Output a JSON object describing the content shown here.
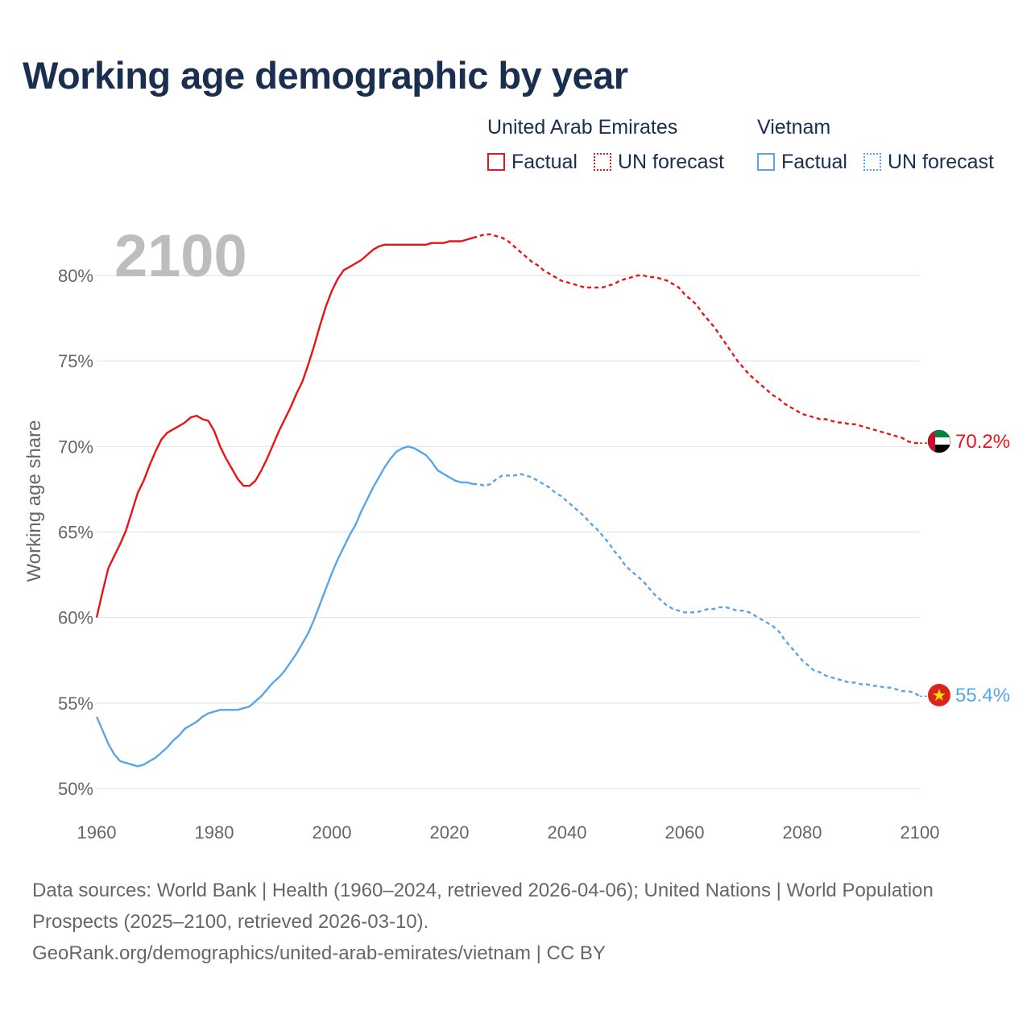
{
  "title": "Working age demographic by year",
  "legend": {
    "groups": [
      {
        "name": "United Arab Emirates",
        "color": "#e8141a",
        "factual_label": "Factual",
        "forecast_label": "UN forecast"
      },
      {
        "name": "Vietnam",
        "color": "#5aa5e6",
        "factual_label": "Factual",
        "forecast_label": "UN forecast"
      }
    ]
  },
  "year_watermark": "2100",
  "chart_data": {
    "type": "line",
    "title": "Working age demographic by year",
    "xlabel": "",
    "ylabel": "Working age share",
    "xlim": [
      1960,
      2100
    ],
    "ylim": [
      49.5,
      83.5
    ],
    "x_ticks": [
      1960,
      1980,
      2000,
      2020,
      2040,
      2060,
      2080,
      2100
    ],
    "y_ticks": [
      50,
      55,
      60,
      65,
      70,
      75,
      80
    ],
    "y_tick_suffix": "%",
    "grid": true,
    "factual_until": 2024,
    "x": [
      1960,
      1961,
      1962,
      1963,
      1964,
      1965,
      1966,
      1967,
      1968,
      1969,
      1970,
      1971,
      1972,
      1973,
      1974,
      1975,
      1976,
      1977,
      1978,
      1979,
      1980,
      1981,
      1982,
      1983,
      1984,
      1985,
      1986,
      1987,
      1988,
      1989,
      1990,
      1991,
      1992,
      1993,
      1994,
      1995,
      1996,
      1997,
      1998,
      1999,
      2000,
      2001,
      2002,
      2003,
      2004,
      2005,
      2006,
      2007,
      2008,
      2009,
      2010,
      2011,
      2012,
      2013,
      2014,
      2015,
      2016,
      2017,
      2018,
      2019,
      2020,
      2021,
      2022,
      2023,
      2024,
      2025,
      2026,
      2027,
      2028,
      2029,
      2030,
      2031,
      2032,
      2033,
      2034,
      2035,
      2036,
      2037,
      2038,
      2039,
      2040,
      2041,
      2042,
      2043,
      2044,
      2045,
      2046,
      2047,
      2048,
      2049,
      2050,
      2051,
      2052,
      2053,
      2054,
      2055,
      2056,
      2057,
      2058,
      2059,
      2060,
      2061,
      2062,
      2063,
      2064,
      2065,
      2066,
      2067,
      2068,
      2069,
      2070,
      2071,
      2072,
      2073,
      2074,
      2075,
      2076,
      2077,
      2078,
      2079,
      2080,
      2081,
      2082,
      2083,
      2084,
      2085,
      2086,
      2087,
      2088,
      2089,
      2090,
      2091,
      2092,
      2093,
      2094,
      2095,
      2096,
      2097,
      2098,
      2099,
      2100
    ],
    "series": [
      {
        "name": "United Arab Emirates",
        "color": "#e8141a",
        "end_label": "70.2%",
        "values": [
          60.0,
          61.5,
          62.9,
          63.6,
          64.3,
          65.1,
          66.2,
          67.3,
          68.0,
          68.9,
          69.7,
          70.4,
          70.8,
          71.0,
          71.2,
          71.4,
          71.7,
          71.8,
          71.6,
          71.5,
          70.9,
          70.0,
          69.3,
          68.7,
          68.1,
          67.7,
          67.7,
          68.0,
          68.6,
          69.3,
          70.1,
          70.9,
          71.6,
          72.3,
          73.1,
          73.8,
          74.8,
          75.9,
          77.1,
          78.2,
          79.1,
          79.8,
          80.3,
          80.5,
          80.7,
          80.9,
          81.2,
          81.5,
          81.7,
          81.8,
          81.8,
          81.8,
          81.8,
          81.8,
          81.8,
          81.8,
          81.8,
          81.9,
          81.9,
          81.9,
          82.0,
          82.0,
          82.0,
          82.1,
          82.2,
          82.3,
          82.4,
          82.4,
          82.3,
          82.2,
          82.0,
          81.7,
          81.4,
          81.1,
          80.8,
          80.6,
          80.3,
          80.1,
          79.9,
          79.7,
          79.6,
          79.5,
          79.4,
          79.3,
          79.3,
          79.3,
          79.3,
          79.4,
          79.5,
          79.7,
          79.8,
          79.9,
          80.0,
          80.0,
          79.9,
          79.9,
          79.8,
          79.7,
          79.5,
          79.3,
          78.9,
          78.6,
          78.3,
          77.8,
          77.4,
          77.0,
          76.5,
          76.0,
          75.5,
          75.0,
          74.6,
          74.2,
          73.9,
          73.6,
          73.3,
          73.0,
          72.8,
          72.5,
          72.3,
          72.1,
          71.9,
          71.8,
          71.7,
          71.6,
          71.6,
          71.5,
          71.4,
          71.4,
          71.3,
          71.3,
          71.2,
          71.1,
          71.0,
          70.9,
          70.8,
          70.7,
          70.6,
          70.5,
          70.3,
          70.2,
          70.2
        ]
      },
      {
        "name": "Vietnam",
        "color": "#5aa5e6",
        "end_label": "55.4%",
        "values": [
          54.2,
          53.4,
          52.6,
          52.0,
          51.6,
          51.5,
          51.4,
          51.3,
          51.4,
          51.6,
          51.8,
          52.1,
          52.4,
          52.8,
          53.1,
          53.5,
          53.7,
          53.9,
          54.2,
          54.4,
          54.5,
          54.6,
          54.6,
          54.6,
          54.6,
          54.7,
          54.8,
          55.1,
          55.4,
          55.8,
          56.2,
          56.5,
          56.9,
          57.4,
          57.9,
          58.5,
          59.1,
          59.9,
          60.8,
          61.7,
          62.6,
          63.4,
          64.1,
          64.8,
          65.4,
          66.2,
          66.9,
          67.6,
          68.2,
          68.8,
          69.3,
          69.7,
          69.9,
          70.0,
          69.9,
          69.7,
          69.5,
          69.1,
          68.6,
          68.4,
          68.2,
          68.0,
          67.9,
          67.9,
          67.8,
          67.8,
          67.7,
          67.8,
          68.1,
          68.3,
          68.3,
          68.3,
          68.4,
          68.3,
          68.2,
          68.0,
          67.8,
          67.6,
          67.3,
          67.1,
          66.8,
          66.5,
          66.2,
          65.9,
          65.5,
          65.2,
          64.8,
          64.4,
          63.9,
          63.5,
          63.0,
          62.7,
          62.4,
          62.1,
          61.7,
          61.3,
          61.0,
          60.7,
          60.5,
          60.4,
          60.3,
          60.3,
          60.3,
          60.4,
          60.5,
          60.5,
          60.6,
          60.6,
          60.5,
          60.4,
          60.4,
          60.3,
          60.1,
          59.9,
          59.7,
          59.5,
          59.2,
          58.7,
          58.3,
          57.9,
          57.5,
          57.2,
          56.9,
          56.8,
          56.6,
          56.5,
          56.4,
          56.3,
          56.2,
          56.2,
          56.1,
          56.1,
          56.0,
          56.0,
          55.9,
          55.9,
          55.8,
          55.7,
          55.7,
          55.6,
          55.4
        ]
      }
    ]
  },
  "footer": {
    "line1": "Data sources: World Bank | Health (1960–2024, retrieved 2026-04-06); United Nations | World Population Prospects (2025–2100, retrieved 2026-03-10).",
    "line2": "GeoRank.org/demographics/united-arab-emirates/vietnam | CC BY"
  }
}
